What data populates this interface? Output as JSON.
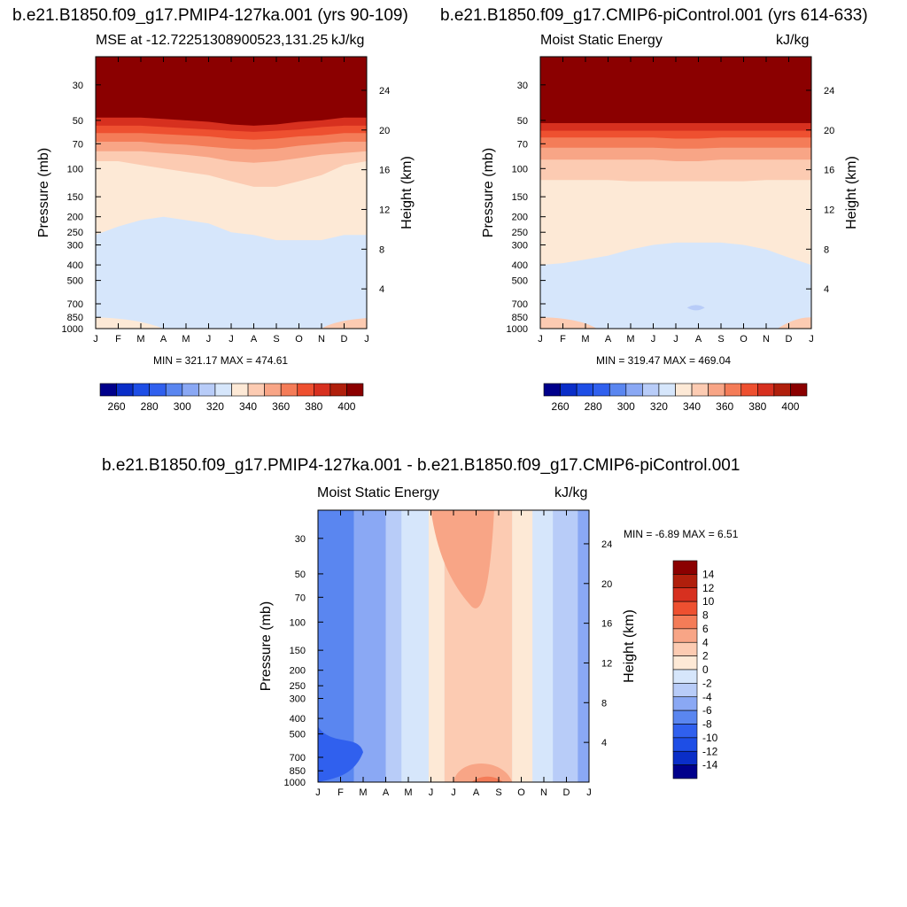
{
  "chart_data": [
    {
      "type": "heatmap",
      "panel": "top-left",
      "title": "b.e21.B1850.f09_g17.PMIP4-127ka.001 (yrs 90-109)",
      "subtitle_left": "MSE at -12.72251308900523,131.25",
      "subtitle_right": "kJ/kg",
      "xlabel": "",
      "ylabel": "Pressure (mb)",
      "ylabel_right": "Height (km)",
      "x_ticks": [
        "J",
        "F",
        "M",
        "A",
        "M",
        "J",
        "J",
        "A",
        "S",
        "O",
        "N",
        "D",
        "J"
      ],
      "y_ticks": [
        30,
        50,
        70,
        100,
        150,
        200,
        250,
        300,
        400,
        500,
        700,
        850,
        1000
      ],
      "y_log": true,
      "y_range": [
        1000,
        20
      ],
      "height_ticks": [
        24,
        20,
        16,
        12,
        8,
        4
      ],
      "stats": "MIN = 321.17 MAX = 474.61",
      "colorbar": {
        "orientation": "horizontal",
        "labels": [
          260,
          280,
          300,
          320,
          340,
          360,
          380,
          400
        ]
      },
      "min": 321.17,
      "max": 474.61,
      "contour_bands": [
        {
          "level": 330,
          "p_top": [
            260,
            230,
            210,
            200,
            210,
            220,
            250,
            260,
            280,
            280,
            280,
            260,
            260
          ]
        },
        {
          "level": 340,
          "p_top": [
            90,
            90,
            95,
            100,
            105,
            110,
            120,
            130,
            130,
            120,
            110,
            95,
            90
          ]
        },
        {
          "level": 350,
          "p_top": [
            78,
            78,
            78,
            80,
            82,
            85,
            90,
            92,
            90,
            86,
            82,
            80,
            78
          ]
        },
        {
          "level": 360,
          "p_top": [
            68,
            68,
            68,
            70,
            71,
            73,
            75,
            76,
            75,
            72,
            70,
            68,
            68
          ]
        },
        {
          "level": 370,
          "p_top": [
            60,
            60,
            60,
            61,
            62,
            63,
            65,
            66,
            65,
            63,
            62,
            60,
            60
          ]
        },
        {
          "level": 380,
          "p_top": [
            54,
            54,
            54,
            55,
            56,
            57,
            58,
            59,
            58,
            57,
            55,
            54,
            54
          ]
        },
        {
          "level": 400,
          "p_top": [
            48,
            48,
            48,
            49,
            50,
            51,
            53,
            54,
            53,
            51,
            50,
            48,
            48
          ]
        }
      ]
    },
    {
      "type": "heatmap",
      "panel": "top-right",
      "title": "b.e21.B1850.f09_g17.CMIP6-piControl.001 (yrs 614-633)",
      "subtitle_left": "Moist Static Energy",
      "subtitle_right": "kJ/kg",
      "ylabel": "Pressure (mb)",
      "ylabel_right": "Height (km)",
      "x_ticks": [
        "J",
        "F",
        "M",
        "A",
        "M",
        "J",
        "J",
        "A",
        "S",
        "O",
        "N",
        "D",
        "J"
      ],
      "y_ticks": [
        30,
        50,
        70,
        100,
        150,
        200,
        250,
        300,
        400,
        500,
        700,
        850,
        1000
      ],
      "y_log": true,
      "y_range": [
        1000,
        20
      ],
      "height_ticks": [
        24,
        20,
        16,
        12,
        8,
        4
      ],
      "stats": "MIN = 319.47 MAX = 469.04",
      "colorbar": {
        "orientation": "horizontal",
        "labels": [
          260,
          280,
          300,
          320,
          340,
          360,
          380,
          400
        ]
      },
      "min": 319.47,
      "max": 469.04,
      "contour_bands": [
        {
          "level": 330,
          "p_top": [
            400,
            390,
            370,
            350,
            320,
            300,
            290,
            290,
            290,
            300,
            320,
            360,
            400
          ]
        },
        {
          "level": 340,
          "p_top": [
            118,
            118,
            118,
            118,
            120,
            120,
            120,
            120,
            120,
            120,
            118,
            118,
            118
          ]
        },
        {
          "level": 350,
          "p_top": [
            88,
            88,
            88,
            88,
            88,
            88,
            90,
            90,
            88,
            88,
            88,
            88,
            88
          ]
        },
        {
          "level": 360,
          "p_top": [
            74,
            74,
            74,
            74,
            74,
            74,
            75,
            75,
            74,
            74,
            74,
            74,
            74
          ]
        },
        {
          "level": 370,
          "p_top": [
            64,
            64,
            64,
            64,
            64,
            64,
            65,
            65,
            64,
            64,
            64,
            64,
            64
          ]
        },
        {
          "level": 380,
          "p_top": [
            58,
            58,
            58,
            58,
            58,
            58,
            58,
            58,
            58,
            58,
            58,
            58,
            58
          ]
        },
        {
          "level": 400,
          "p_top": [
            52,
            52,
            52,
            52,
            52,
            52,
            52,
            52,
            52,
            52,
            52,
            52,
            52
          ]
        }
      ]
    },
    {
      "type": "heatmap",
      "panel": "bottom",
      "title": "b.e21.B1850.f09_g17.PMIP4-127ka.001 - b.e21.B1850.f09_g17.CMIP6-piControl.001",
      "subtitle_left": "Moist Static Energy",
      "subtitle_right": "kJ/kg",
      "ylabel": "Pressure (mb)",
      "ylabel_right": "Height (km)",
      "x_ticks": [
        "J",
        "F",
        "M",
        "A",
        "M",
        "J",
        "J",
        "A",
        "S",
        "O",
        "N",
        "D",
        "J"
      ],
      "y_ticks": [
        30,
        50,
        70,
        100,
        150,
        200,
        250,
        300,
        400,
        500,
        700,
        850,
        1000
      ],
      "y_log": true,
      "y_range": [
        1000,
        20
      ],
      "height_ticks": [
        24,
        20,
        16,
        12,
        8,
        4
      ],
      "stats": "MIN =  -6.89 MAX =   6.51",
      "colorbar": {
        "orientation": "vertical",
        "labels": [
          14,
          12,
          10,
          8,
          6,
          4,
          2,
          0,
          -2,
          -4,
          -6,
          -8,
          -10,
          -12,
          -14
        ]
      },
      "min": -6.89,
      "max": 6.51
    }
  ],
  "colors": {
    "mse_scale": [
      "#00008b",
      "#0a2ec8",
      "#1e4ee6",
      "#3060ee",
      "#5a86f0",
      "#8aa8f4",
      "#b8ccf8",
      "#d6e6fb",
      "#fde9d6",
      "#fccbb2",
      "#f8a586",
      "#f47c58",
      "#ee5030",
      "#d7301f",
      "#b01f0c",
      "#8b0000"
    ],
    "diff_scale": [
      "#8b0000",
      "#b01f0c",
      "#d7301f",
      "#ee5030",
      "#f47c58",
      "#f8a586",
      "#fccbb2",
      "#fde9d6",
      "#d6e6fb",
      "#b8ccf8",
      "#8aa8f4",
      "#5a86f0",
      "#3060ee",
      "#1e4ee6",
      "#0a2ec8",
      "#00008b"
    ]
  }
}
